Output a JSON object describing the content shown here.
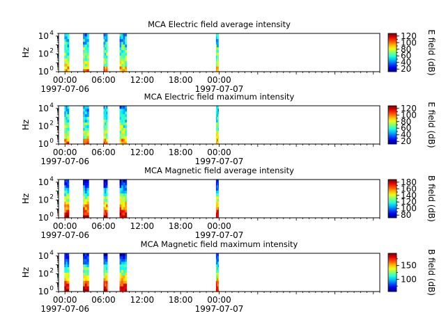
{
  "chart_data": [
    {
      "type": "heatmap",
      "title": "MCA  Electric field average intensity",
      "ylabel": "Hz",
      "yscale": "log",
      "ylim": [
        1,
        20000
      ],
      "yticks": [
        {
          "v": 1,
          "m": "0"
        },
        {
          "v": 100,
          "m": "2"
        },
        {
          "v": 10000,
          "m": "4"
        }
      ],
      "xlim_hours": [
        -1,
        49
      ],
      "xticks": [
        {
          "h": 0,
          "label": "00:00",
          "date": "1997-07-06"
        },
        {
          "h": 12,
          "label": "12:00",
          "date": ""
        },
        {
          "h": 6,
          "label": "06:00",
          "date": ""
        },
        {
          "h": 18,
          "label": "18:00",
          "date": ""
        },
        {
          "h": 24,
          "label": "00:00",
          "date": "1997-07-07"
        }
      ],
      "data_intervals_hours": [
        [
          -0.1,
          0.6
        ],
        [
          2.8,
          3.7
        ],
        [
          6.0,
          6.6
        ],
        [
          8.5,
          9.6
        ],
        [
          23.5,
          23.9
        ]
      ],
      "colorbar": {
        "label": "E field (dB)",
        "min": 12,
        "max": 128,
        "ticks": [
          20,
          40,
          60,
          80,
          100,
          120
        ]
      }
    },
    {
      "type": "heatmap",
      "title": "MCA  Electric field maximum intensity",
      "ylabel": "Hz",
      "yscale": "log",
      "ylim": [
        1,
        20000
      ],
      "yticks": [
        {
          "v": 1,
          "m": "0"
        },
        {
          "v": 100,
          "m": "2"
        },
        {
          "v": 10000,
          "m": "4"
        }
      ],
      "xlim_hours": [
        -1,
        49
      ],
      "xticks": [
        {
          "h": 0,
          "label": "00:00",
          "date": "1997-07-06"
        },
        {
          "h": 12,
          "label": "12:00",
          "date": ""
        },
        {
          "h": 6,
          "label": "06:00",
          "date": ""
        },
        {
          "h": 18,
          "label": "18:00",
          "date": ""
        },
        {
          "h": 24,
          "label": "00:00",
          "date": "1997-07-07"
        }
      ],
      "data_intervals_hours": [
        [
          -0.1,
          0.6
        ],
        [
          2.8,
          3.7
        ],
        [
          6.0,
          6.6
        ],
        [
          8.5,
          9.6
        ],
        [
          23.5,
          23.9
        ]
      ],
      "colorbar": {
        "label": "E field (dB)",
        "min": 12,
        "max": 128,
        "ticks": [
          20,
          40,
          60,
          80,
          100,
          120
        ]
      }
    },
    {
      "type": "heatmap",
      "title": "MCA  Magnetic field average intensity",
      "ylabel": "Hz",
      "yscale": "log",
      "ylim": [
        1,
        20000
      ],
      "yticks": [
        {
          "v": 1,
          "m": "0"
        },
        {
          "v": 100,
          "m": "2"
        },
        {
          "v": 10000,
          "m": "4"
        }
      ],
      "xlim_hours": [
        -1,
        49
      ],
      "xticks": [
        {
          "h": 0,
          "label": "00:00",
          "date": "1997-07-06"
        },
        {
          "h": 12,
          "label": "12:00",
          "date": ""
        },
        {
          "h": 6,
          "label": "06:00",
          "date": ""
        },
        {
          "h": 18,
          "label": "18:00",
          "date": ""
        },
        {
          "h": 24,
          "label": "00:00",
          "date": "1997-07-07"
        }
      ],
      "data_intervals_hours": [
        [
          -0.1,
          0.6
        ],
        [
          2.8,
          3.7
        ],
        [
          6.0,
          6.6
        ],
        [
          8.5,
          9.6
        ],
        [
          23.5,
          23.9
        ]
      ],
      "colorbar": {
        "label": "B field (dB)",
        "min": 72,
        "max": 188,
        "ticks": [
          80,
          100,
          120,
          140,
          160,
          180
        ]
      }
    },
    {
      "type": "heatmap",
      "title": "MCA  Magnetic field maximum intensity",
      "ylabel": "Hz",
      "yscale": "log",
      "ylim": [
        1,
        20000
      ],
      "yticks": [
        {
          "v": 1,
          "m": "0"
        },
        {
          "v": 100,
          "m": "2"
        },
        {
          "v": 10000,
          "m": "4"
        }
      ],
      "xlim_hours": [
        -1,
        49
      ],
      "xticks": [
        {
          "h": 0,
          "label": "00:00",
          "date": "1997-07-06"
        },
        {
          "h": 12,
          "label": "12:00",
          "date": ""
        },
        {
          "h": 6,
          "label": "06:00",
          "date": ""
        },
        {
          "h": 18,
          "label": "18:00",
          "date": ""
        },
        {
          "h": 24,
          "label": "00:00",
          "date": "1997-07-07"
        }
      ],
      "data_intervals_hours": [
        [
          -0.1,
          0.6
        ],
        [
          2.8,
          3.7
        ],
        [
          6.0,
          6.6
        ],
        [
          8.5,
          9.6
        ],
        [
          23.5,
          23.9
        ]
      ],
      "colorbar": {
        "label": "B field (dB)",
        "min": 55,
        "max": 195,
        "ticks": [
          100,
          150
        ]
      }
    }
  ]
}
